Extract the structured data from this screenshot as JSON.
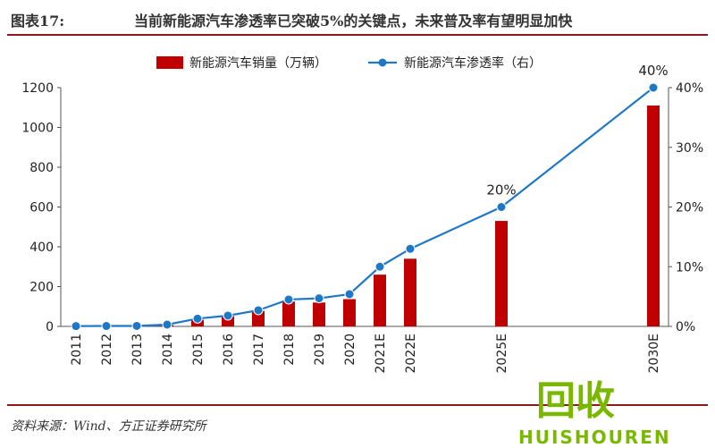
{
  "figure": {
    "label": "图表17:",
    "title": "当前新能源汽车渗透率已突破5%的关键点，未来普及率有望明显加快",
    "source": "资料来源：Wind、方正证券研究所",
    "watermark_cn": "回收",
    "watermark_en": "HUISHOUREN"
  },
  "chart_data": {
    "type": "bar+line",
    "categories": [
      "2011",
      "2012",
      "2013",
      "2014",
      "2015",
      "2016",
      "2017",
      "2018",
      "2019",
      "2020",
      "2021E",
      "2022E",
      "2025E",
      "2030E"
    ],
    "x_positions": [
      2011,
      2012,
      2013,
      2014,
      2015,
      2016,
      2017,
      2018,
      2019,
      2020,
      2021,
      2022,
      2025,
      2030
    ],
    "series": [
      {
        "name": "新能源汽车销量（万辆）",
        "type": "bar",
        "axis": "left",
        "color": "#c00000",
        "values": [
          0.8,
          1.3,
          1.8,
          7.5,
          33,
          51,
          78,
          125,
          120,
          137,
          260,
          340,
          530,
          1110
        ]
      },
      {
        "name": "新能源汽车渗透率（右）",
        "type": "line",
        "axis": "right",
        "color": "#1f77c8",
        "values": [
          0.05,
          0.07,
          0.08,
          0.3,
          1.3,
          1.8,
          2.7,
          4.5,
          4.7,
          5.4,
          10,
          13,
          20,
          40
        ]
      }
    ],
    "data_labels": [
      {
        "category": "2025E",
        "text": "20%"
      },
      {
        "category": "2030E",
        "text": "40%"
      }
    ],
    "y_left": {
      "ylim": [
        0,
        1200
      ],
      "ticks": [
        "0",
        "200",
        "400",
        "600",
        "800",
        "1000",
        "1200"
      ]
    },
    "y_right": {
      "ylim": [
        0,
        40
      ],
      "ticks": [
        "0%",
        "10%",
        "20%",
        "30%",
        "40%"
      ]
    },
    "legend_position": "top-center",
    "grid": false
  }
}
